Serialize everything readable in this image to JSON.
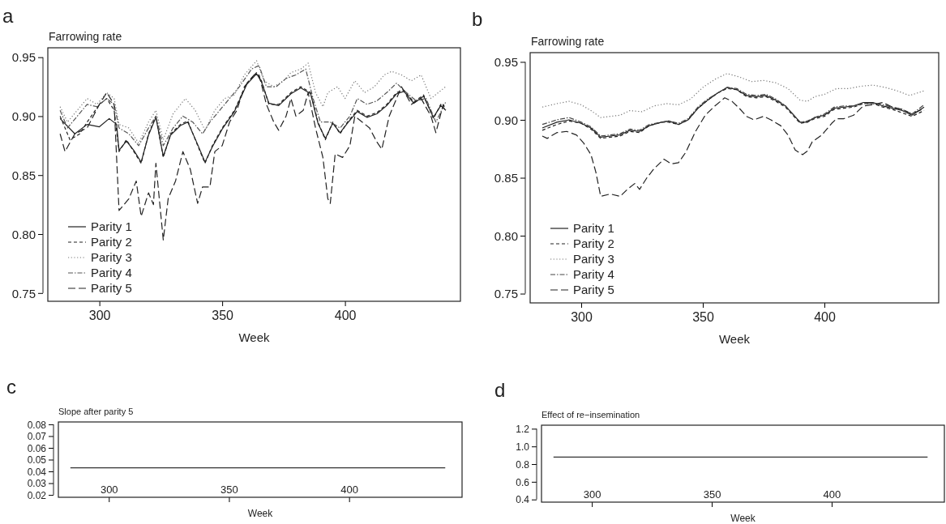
{
  "chart_data": [
    {
      "type": "line",
      "title": "a",
      "ylabel": "Farrowing rate",
      "xlabel": "Week",
      "xlim": [
        279,
        447
      ],
      "ylim": [
        0.743,
        0.958
      ],
      "xticks": [
        300,
        350,
        400
      ],
      "yticks": [
        0.75,
        {
          "value": 0.8,
          "label": "0.80"
        },
        0.85,
        {
          "value": 0.9,
          "label": "0.90"
        },
        0.95
      ],
      "legend": "bottom left",
      "series": [
        {
          "name": "Parity 1",
          "color": "#222222",
          "line_style": "solid",
          "x": [
            284,
            290,
            295,
            300,
            304,
            307,
            308,
            311,
            314,
            317,
            320,
            323,
            326,
            329,
            333,
            336,
            340,
            343,
            346,
            350,
            355,
            360,
            364,
            366,
            369,
            373,
            378,
            382,
            386,
            389,
            392,
            395,
            398,
            401,
            405,
            409,
            413,
            417,
            421,
            424,
            428,
            432,
            436,
            439,
            441
          ],
          "values": [
            0.898,
            0.885,
            0.893,
            0.891,
            0.898,
            0.893,
            0.871,
            0.879,
            0.871,
            0.861,
            0.884,
            0.899,
            0.866,
            0.884,
            0.892,
            0.895,
            0.876,
            0.861,
            0.874,
            0.889,
            0.904,
            0.927,
            0.936,
            0.929,
            0.911,
            0.909,
            0.919,
            0.924,
            0.919,
            0.894,
            0.881,
            0.894,
            0.886,
            0.894,
            0.904,
            0.899,
            0.902,
            0.909,
            0.919,
            0.921,
            0.911,
            0.917,
            0.899,
            0.909,
            0.905
          ]
        },
        {
          "name": "Parity 2",
          "color": "#222222",
          "line_style": "dashed",
          "x": [
            284,
            288,
            292,
            295,
            300,
            303,
            306,
            308,
            311,
            314,
            317,
            320,
            323,
            326,
            329,
            333,
            336,
            340,
            343,
            346,
            350,
            355,
            360,
            364,
            366,
            369,
            373,
            378,
            382,
            386,
            389,
            392,
            395,
            398,
            401,
            405,
            409,
            413,
            417,
            421,
            424,
            428,
            432,
            436,
            439,
            441
          ],
          "values": [
            0.9,
            0.88,
            0.885,
            0.895,
            0.91,
            0.915,
            0.905,
            0.87,
            0.88,
            0.87,
            0.86,
            0.885,
            0.9,
            0.865,
            0.885,
            0.893,
            0.896,
            0.875,
            0.86,
            0.875,
            0.89,
            0.905,
            0.928,
            0.937,
            0.93,
            0.91,
            0.91,
            0.92,
            0.925,
            0.92,
            0.895,
            0.88,
            0.895,
            0.885,
            0.895,
            0.905,
            0.9,
            0.903,
            0.91,
            0.92,
            0.922,
            0.912,
            0.918,
            0.898,
            0.91,
            0.905
          ]
        },
        {
          "name": "Parity 3",
          "color": "#777777",
          "line_style": "dotted",
          "x": [
            284,
            287,
            291,
            295,
            299,
            303,
            306,
            308,
            312,
            316,
            320,
            323,
            326,
            330,
            335,
            339,
            343,
            347,
            351,
            355,
            359,
            364,
            367,
            371,
            375,
            378,
            382,
            385,
            388,
            391,
            393,
            397,
            400,
            404,
            408,
            412,
            416,
            419,
            423,
            427,
            431,
            435,
            438,
            441
          ],
          "values": [
            0.908,
            0.895,
            0.905,
            0.915,
            0.91,
            0.92,
            0.915,
            0.893,
            0.89,
            0.877,
            0.895,
            0.905,
            0.88,
            0.902,
            0.915,
            0.905,
            0.888,
            0.905,
            0.915,
            0.918,
            0.935,
            0.947,
            0.93,
            0.925,
            0.93,
            0.937,
            0.94,
            0.945,
            0.92,
            0.908,
            0.92,
            0.925,
            0.915,
            0.93,
            0.92,
            0.925,
            0.935,
            0.938,
            0.935,
            0.93,
            0.935,
            0.915,
            0.92,
            0.925
          ]
        },
        {
          "name": "Parity 4",
          "color": "#555555",
          "line_style": "dashdot",
          "x": [
            284,
            287,
            291,
            295,
            299,
            303,
            306,
            308,
            312,
            316,
            320,
            323,
            326,
            330,
            334,
            338,
            342,
            345,
            349,
            353,
            357,
            362,
            365,
            368,
            372,
            376,
            380,
            384,
            387,
            390,
            394,
            398,
            402,
            405,
            409,
            413,
            417,
            421,
            425,
            429,
            433,
            437,
            441
          ],
          "values": [
            0.905,
            0.89,
            0.9,
            0.91,
            0.908,
            0.915,
            0.91,
            0.89,
            0.885,
            0.875,
            0.89,
            0.9,
            0.875,
            0.89,
            0.9,
            0.895,
            0.885,
            0.895,
            0.905,
            0.915,
            0.925,
            0.94,
            0.943,
            0.925,
            0.925,
            0.932,
            0.935,
            0.94,
            0.915,
            0.895,
            0.895,
            0.89,
            0.9,
            0.915,
            0.91,
            0.913,
            0.92,
            0.928,
            0.92,
            0.913,
            0.915,
            0.895,
            0.912
          ]
        },
        {
          "name": "Parity 5",
          "color": "#222222",
          "line_style": "longdash",
          "x": [
            284,
            286,
            290,
            295,
            300,
            303,
            306,
            308,
            312,
            315,
            317,
            320,
            322,
            323,
            326,
            328,
            331,
            334,
            337,
            340,
            342,
            345,
            347,
            350,
            353,
            356,
            359,
            363,
            365,
            368,
            371,
            373,
            376,
            378,
            380,
            383,
            385,
            388,
            391,
            393,
            394,
            396,
            399,
            402,
            404,
            407,
            410,
            413,
            415,
            418,
            421,
            423,
            427,
            431,
            435,
            437,
            440,
            441
          ],
          "values": [
            0.885,
            0.87,
            0.885,
            0.89,
            0.91,
            0.92,
            0.91,
            0.82,
            0.83,
            0.845,
            0.815,
            0.835,
            0.825,
            0.86,
            0.795,
            0.83,
            0.845,
            0.87,
            0.855,
            0.826,
            0.84,
            0.84,
            0.87,
            0.875,
            0.895,
            0.905,
            0.925,
            0.935,
            0.935,
            0.91,
            0.895,
            0.888,
            0.9,
            0.915,
            0.9,
            0.905,
            0.92,
            0.89,
            0.865,
            0.83,
            0.826,
            0.868,
            0.865,
            0.875,
            0.9,
            0.895,
            0.89,
            0.878,
            0.872,
            0.9,
            0.915,
            0.925,
            0.91,
            0.915,
            0.9,
            0.886,
            0.91,
            0.905
          ]
        }
      ]
    },
    {
      "type": "line",
      "title": "b",
      "ylabel": "Farrowing rate",
      "xlabel": "Week",
      "xlim": [
        279,
        447
      ],
      "ylim": [
        0.742,
        0.958
      ],
      "xticks": [
        300,
        350,
        400
      ],
      "yticks": [
        0.75,
        {
          "value": 0.8,
          "label": "0.80"
        },
        0.85,
        {
          "value": 0.9,
          "label": "0.90"
        },
        0.95
      ],
      "legend": "bottom left",
      "series": [
        {
          "name": "Parity 1",
          "color": "#222222",
          "line_style": "solid",
          "x": [
            284,
            290,
            295,
            300,
            304,
            308,
            312,
            316,
            320,
            324,
            328,
            333,
            336,
            340,
            344,
            348,
            352,
            356,
            360,
            364,
            368,
            372,
            376,
            380,
            384,
            387,
            390,
            393,
            396,
            400,
            404,
            408,
            412,
            416,
            420,
            424,
            428,
            432,
            436,
            441
          ],
          "values": [
            0.893,
            0.898,
            0.9,
            0.897,
            0.893,
            0.885,
            0.886,
            0.887,
            0.891,
            0.89,
            0.895,
            0.898,
            0.899,
            0.896,
            0.9,
            0.91,
            0.917,
            0.923,
            0.928,
            0.926,
            0.921,
            0.92,
            0.921,
            0.917,
            0.912,
            0.905,
            0.898,
            0.898,
            0.902,
            0.904,
            0.91,
            0.911,
            0.912,
            0.915,
            0.915,
            0.912,
            0.91,
            0.908,
            0.904,
            0.911
          ]
        },
        {
          "name": "Parity 2",
          "color": "#222222",
          "line_style": "dashed",
          "x": [
            284,
            290,
            295,
            300,
            304,
            308,
            312,
            316,
            320,
            324,
            328,
            333,
            336,
            340,
            344,
            348,
            352,
            356,
            360,
            364,
            368,
            372,
            376,
            380,
            384,
            387,
            390,
            393,
            396,
            400,
            404,
            408,
            412,
            416,
            420,
            424,
            428,
            432,
            436,
            441
          ],
          "values": [
            0.891,
            0.896,
            0.899,
            0.897,
            0.892,
            0.884,
            0.885,
            0.886,
            0.89,
            0.889,
            0.895,
            0.898,
            0.898,
            0.896,
            0.9,
            0.91,
            0.917,
            0.923,
            0.927,
            0.926,
            0.92,
            0.919,
            0.92,
            0.916,
            0.911,
            0.904,
            0.897,
            0.898,
            0.901,
            0.903,
            0.909,
            0.91,
            0.911,
            0.914,
            0.914,
            0.911,
            0.909,
            0.906,
            0.903,
            0.908
          ]
        },
        {
          "name": "Parity 3",
          "color": "#777777",
          "line_style": "dotted",
          "x": [
            284,
            290,
            295,
            300,
            304,
            308,
            312,
            316,
            320,
            325,
            330,
            335,
            340,
            345,
            350,
            355,
            360,
            365,
            370,
            375,
            380,
            385,
            390,
            393,
            396,
            400,
            405,
            410,
            415,
            420,
            425,
            430,
            435,
            441
          ],
          "values": [
            0.911,
            0.914,
            0.916,
            0.913,
            0.908,
            0.902,
            0.903,
            0.904,
            0.908,
            0.907,
            0.912,
            0.914,
            0.913,
            0.918,
            0.928,
            0.935,
            0.94,
            0.937,
            0.933,
            0.934,
            0.932,
            0.927,
            0.917,
            0.916,
            0.92,
            0.922,
            0.927,
            0.927,
            0.929,
            0.93,
            0.928,
            0.925,
            0.921,
            0.925
          ]
        },
        {
          "name": "Parity 4",
          "color": "#444444",
          "line_style": "dashdot",
          "x": [
            284,
            290,
            295,
            300,
            304,
            308,
            312,
            316,
            320,
            324,
            328,
            333,
            336,
            340,
            344,
            348,
            352,
            356,
            360,
            364,
            368,
            372,
            376,
            380,
            384,
            387,
            390,
            393,
            396,
            400,
            404,
            408,
            412,
            416,
            420,
            424,
            428,
            432,
            436,
            441
          ],
          "values": [
            0.896,
            0.9,
            0.902,
            0.898,
            0.894,
            0.886,
            0.887,
            0.888,
            0.892,
            0.891,
            0.896,
            0.898,
            0.899,
            0.897,
            0.901,
            0.911,
            0.918,
            0.923,
            0.928,
            0.927,
            0.922,
            0.921,
            0.922,
            0.918,
            0.912,
            0.905,
            0.898,
            0.899,
            0.902,
            0.905,
            0.911,
            0.912,
            0.912,
            0.914,
            0.914,
            0.913,
            0.911,
            0.909,
            0.905,
            0.913
          ]
        },
        {
          "name": "Parity 5",
          "color": "#222222",
          "line_style": "longdash",
          "x": [
            284,
            286,
            290,
            294,
            298,
            301,
            304,
            306,
            308,
            312,
            316,
            319,
            322,
            324,
            327,
            330,
            334,
            337,
            340,
            343,
            347,
            351,
            355,
            359,
            362,
            365,
            368,
            371,
            375,
            378,
            382,
            385,
            388,
            391,
            393,
            395,
            399,
            403,
            405,
            408,
            412,
            416,
            420,
            424,
            428,
            432,
            436,
            441
          ],
          "values": [
            0.886,
            0.884,
            0.889,
            0.89,
            0.887,
            0.88,
            0.87,
            0.855,
            0.834,
            0.836,
            0.834,
            0.84,
            0.845,
            0.84,
            0.85,
            0.858,
            0.866,
            0.862,
            0.863,
            0.872,
            0.89,
            0.904,
            0.912,
            0.919,
            0.916,
            0.91,
            0.903,
            0.9,
            0.903,
            0.9,
            0.895,
            0.887,
            0.874,
            0.87,
            0.873,
            0.881,
            0.887,
            0.897,
            0.901,
            0.901,
            0.904,
            0.912,
            0.913,
            0.915,
            0.911,
            0.909,
            0.905,
            0.91
          ]
        }
      ]
    },
    {
      "type": "line",
      "title": "c",
      "ylabel": "Slope after parity 5",
      "xlabel": "Week",
      "xlim": [
        279,
        447
      ],
      "ylim": [
        0.018,
        0.082
      ],
      "xticks": [
        300,
        350,
        400
      ],
      "yticks": [
        0.02,
        0.03,
        0.04,
        0.05,
        0.06,
        0.07,
        0.08
      ],
      "series": [
        {
          "color": "#333333",
          "line_style": "solid",
          "x": [
            284,
            440
          ],
          "values": [
            0.043,
            0.043
          ]
        }
      ]
    },
    {
      "type": "line",
      "title": "d",
      "ylabel": "Effect of re−insemination",
      "xlabel": "Week",
      "xlim": [
        279,
        447
      ],
      "ylim": [
        0.37,
        1.24
      ],
      "xticks": [
        300,
        350,
        400
      ],
      "yticks": [
        0.4,
        0.6,
        0.8,
        {
          "value": 1.0,
          "label": "1.0"
        },
        1.2
      ],
      "series": [
        {
          "color": "#333333",
          "line_style": "solid",
          "x": [
            284,
            440
          ],
          "values": [
            0.88,
            0.88
          ]
        }
      ]
    }
  ]
}
